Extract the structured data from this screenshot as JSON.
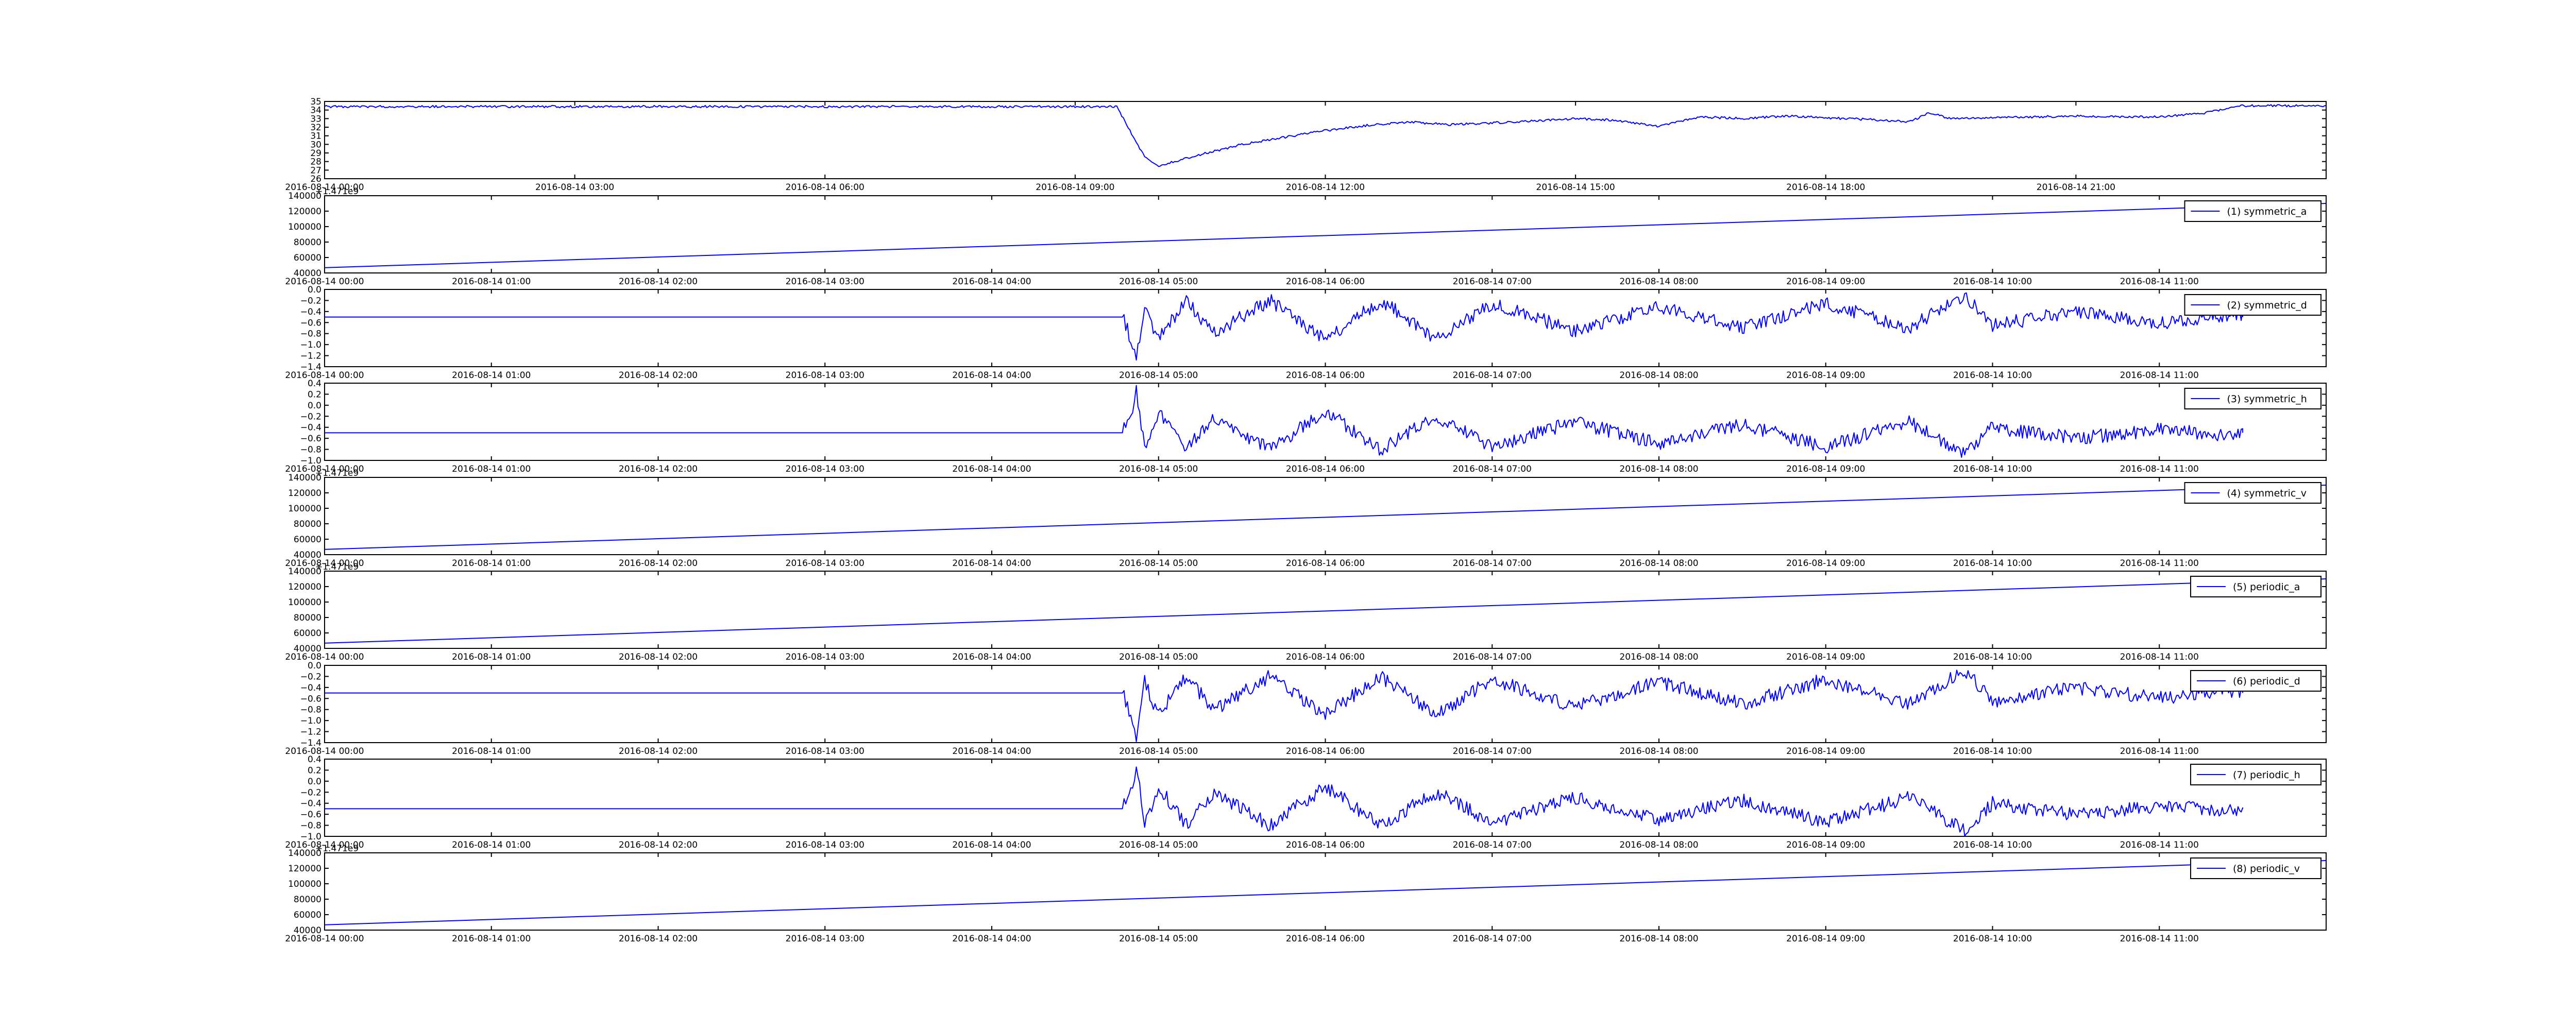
{
  "chart_data": [
    {
      "type": "line",
      "title": "",
      "xlabel": "",
      "ylabel": "",
      "x_start": "2016-08-14 00:00",
      "x_end": "2016-08-15 00:00",
      "xticks": [
        "2016-08-14 00:00",
        "2016-08-14 03:00",
        "2016-08-14 06:00",
        "2016-08-14 09:00",
        "2016-08-14 12:00",
        "2016-08-14 15:00",
        "2016-08-14 18:00",
        "2016-08-14 21:00"
      ],
      "yticks": [
        "26",
        "27",
        "28",
        "29",
        "30",
        "31",
        "32",
        "33",
        "34",
        "35"
      ],
      "ylim": [
        26,
        35
      ],
      "offset_text": "",
      "legend": "",
      "color": "#0000ff",
      "series": [
        {
          "points": [
            [
              "2016-08-14 00:00",
              34.4
            ],
            [
              "2016-08-14 09:30",
              34.4
            ],
            [
              "2016-08-14 09:50",
              28.5
            ],
            [
              "2016-08-14 10:00",
              27.5
            ],
            [
              "2016-08-14 10:30",
              28.8
            ],
            [
              "2016-08-14 11:00",
              30.0
            ],
            [
              "2016-08-14 11:30",
              30.8
            ],
            [
              "2016-08-14 12:00",
              31.6
            ],
            [
              "2016-08-14 12:30",
              32.2
            ],
            [
              "2016-08-14 13:00",
              32.6
            ],
            [
              "2016-08-14 13:30",
              32.3
            ],
            [
              "2016-08-14 14:00",
              32.5
            ],
            [
              "2016-08-14 15:00",
              33.0
            ],
            [
              "2016-08-14 15:30",
              32.8
            ],
            [
              "2016-08-14 16:00",
              32.1
            ],
            [
              "2016-08-14 16:30",
              33.2
            ],
            [
              "2016-08-14 17:00",
              33.0
            ],
            [
              "2016-08-14 17:30",
              33.3
            ],
            [
              "2016-08-14 18:00",
              33.1
            ],
            [
              "2016-08-14 18:30",
              32.9
            ],
            [
              "2016-08-14 19:00",
              32.6
            ],
            [
              "2016-08-14 19:15",
              33.7
            ],
            [
              "2016-08-14 19:30",
              33.0
            ],
            [
              "2016-08-14 20:00",
              33.1
            ],
            [
              "2016-08-14 21:00",
              33.3
            ],
            [
              "2016-08-14 22:00",
              33.2
            ],
            [
              "2016-08-14 22:30",
              33.6
            ],
            [
              "2016-08-14 23:00",
              34.5
            ],
            [
              "2016-08-15 00:00",
              34.5
            ]
          ]
        }
      ]
    },
    {
      "type": "line",
      "title": "",
      "xlabel": "",
      "ylabel": "",
      "x_start": "2016-08-14 00:00",
      "x_end": "2016-08-14 12:00",
      "xticks": [
        "2016-08-14 00:00",
        "2016-08-14 01:00",
        "2016-08-14 02:00",
        "2016-08-14 03:00",
        "2016-08-14 04:00",
        "2016-08-14 05:00",
        "2016-08-14 06:00",
        "2016-08-14 07:00",
        "2016-08-14 08:00",
        "2016-08-14 09:00",
        "2016-08-14 10:00",
        "2016-08-14 11:00"
      ],
      "yticks": [
        "40000",
        "60000",
        "80000",
        "100000",
        "120000",
        "140000"
      ],
      "ylim": [
        40000,
        140000
      ],
      "offset_text": "+1.471e9",
      "legend": "(1) symmetric_a",
      "color": "#0000ff",
      "series": [
        {
          "name": "(1) symmetric_a",
          "points": [
            [
              "2016-08-14 00:00",
              46800
            ],
            [
              "2016-08-14 12:00",
              130000
            ]
          ]
        }
      ]
    },
    {
      "type": "line",
      "title": "",
      "xlabel": "",
      "ylabel": "",
      "x_start": "2016-08-14 00:00",
      "x_end": "2016-08-14 12:00",
      "xticks": [
        "2016-08-14 00:00",
        "2016-08-14 01:00",
        "2016-08-14 02:00",
        "2016-08-14 03:00",
        "2016-08-14 04:00",
        "2016-08-14 05:00",
        "2016-08-14 06:00",
        "2016-08-14 07:00",
        "2016-08-14 08:00",
        "2016-08-14 09:00",
        "2016-08-14 10:00",
        "2016-08-14 11:00"
      ],
      "yticks": [
        "−1.4",
        "−1.2",
        "−1.0",
        "−0.8",
        "−0.6",
        "−0.4",
        "−0.2",
        "0.0"
      ],
      "ylim": [
        -1.4,
        0.0
      ],
      "offset_text": "",
      "legend": "(2) symmetric_d",
      "color": "#0000ff",
      "series": [
        {
          "name": "(2) symmetric_d",
          "points": [
            [
              "2016-08-14 00:00",
              -0.5
            ],
            [
              "2016-08-14 04:47",
              -0.5
            ],
            [
              "2016-08-14 04:50",
              -0.9
            ],
            [
              "2016-08-14 04:52",
              -1.3
            ],
            [
              "2016-08-14 04:55",
              -0.3
            ],
            [
              "2016-08-14 05:00",
              -0.9
            ],
            [
              "2016-08-14 05:10",
              -0.2
            ],
            [
              "2016-08-14 05:20",
              -0.8
            ],
            [
              "2016-08-14 05:40",
              -0.2
            ],
            [
              "2016-08-14 06:00",
              -0.9
            ],
            [
              "2016-08-14 06:20",
              -0.2
            ],
            [
              "2016-08-14 06:40",
              -0.9
            ],
            [
              "2016-08-14 07:00",
              -0.25
            ],
            [
              "2016-08-14 07:30",
              -0.75
            ],
            [
              "2016-08-14 08:00",
              -0.3
            ],
            [
              "2016-08-14 08:30",
              -0.7
            ],
            [
              "2016-08-14 09:00",
              -0.25
            ],
            [
              "2016-08-14 09:30",
              -0.7
            ],
            [
              "2016-08-14 09:50",
              -0.1
            ],
            [
              "2016-08-14 10:00",
              -0.65
            ],
            [
              "2016-08-14 10:30",
              -0.4
            ],
            [
              "2016-08-14 11:00",
              -0.6
            ],
            [
              "2016-08-14 11:30",
              -0.45
            ],
            [
              "2016-08-14 11:30",
              -0.5
            ]
          ]
        }
      ]
    },
    {
      "type": "line",
      "title": "",
      "xlabel": "",
      "ylabel": "",
      "x_start": "2016-08-14 00:00",
      "x_end": "2016-08-14 12:00",
      "xticks": [
        "2016-08-14 00:00",
        "2016-08-14 01:00",
        "2016-08-14 02:00",
        "2016-08-14 03:00",
        "2016-08-14 04:00",
        "2016-08-14 05:00",
        "2016-08-14 06:00",
        "2016-08-14 07:00",
        "2016-08-14 08:00",
        "2016-08-14 09:00",
        "2016-08-14 10:00",
        "2016-08-14 11:00"
      ],
      "yticks": [
        "−1.0",
        "−0.8",
        "−0.6",
        "−0.4",
        "−0.2",
        "0.0",
        "0.2",
        "0.4"
      ],
      "ylim": [
        -1.0,
        0.4
      ],
      "offset_text": "",
      "legend": "(3) symmetric_h",
      "color": "#0000ff",
      "series": [
        {
          "name": "(3) symmetric_h",
          "points": [
            [
              "2016-08-14 00:00",
              -0.5
            ],
            [
              "2016-08-14 04:47",
              -0.5
            ],
            [
              "2016-08-14 04:50",
              -0.2
            ],
            [
              "2016-08-14 04:52",
              0.3
            ],
            [
              "2016-08-14 04:55",
              -0.8
            ],
            [
              "2016-08-14 05:00",
              -0.1
            ],
            [
              "2016-08-14 05:10",
              -0.8
            ],
            [
              "2016-08-14 05:20",
              -0.2
            ],
            [
              "2016-08-14 05:40",
              -0.8
            ],
            [
              "2016-08-14 06:00",
              -0.1
            ],
            [
              "2016-08-14 06:20",
              -0.8
            ],
            [
              "2016-08-14 06:40",
              -0.2
            ],
            [
              "2016-08-14 07:00",
              -0.75
            ],
            [
              "2016-08-14 07:30",
              -0.3
            ],
            [
              "2016-08-14 08:00",
              -0.7
            ],
            [
              "2016-08-14 08:30",
              -0.35
            ],
            [
              "2016-08-14 09:00",
              -0.75
            ],
            [
              "2016-08-14 09:30",
              -0.3
            ],
            [
              "2016-08-14 09:50",
              -0.9
            ],
            [
              "2016-08-14 10:00",
              -0.4
            ],
            [
              "2016-08-14 10:30",
              -0.6
            ],
            [
              "2016-08-14 11:00",
              -0.45
            ],
            [
              "2016-08-14 11:30",
              -0.55
            ],
            [
              "2016-08-14 11:30",
              -0.5
            ]
          ]
        }
      ]
    },
    {
      "type": "line",
      "title": "",
      "xlabel": "",
      "ylabel": "",
      "x_start": "2016-08-14 00:00",
      "x_end": "2016-08-14 12:00",
      "xticks": [
        "2016-08-14 00:00",
        "2016-08-14 01:00",
        "2016-08-14 02:00",
        "2016-08-14 03:00",
        "2016-08-14 04:00",
        "2016-08-14 05:00",
        "2016-08-14 06:00",
        "2016-08-14 07:00",
        "2016-08-14 08:00",
        "2016-08-14 09:00",
        "2016-08-14 10:00",
        "2016-08-14 11:00"
      ],
      "yticks": [
        "40000",
        "60000",
        "80000",
        "100000",
        "120000",
        "140000"
      ],
      "ylim": [
        40000,
        140000
      ],
      "offset_text": "+1.471e9",
      "legend": "(4) symmetric_v",
      "color": "#0000ff",
      "series": [
        {
          "name": "(4) symmetric_v",
          "points": [
            [
              "2016-08-14 00:00",
              46800
            ],
            [
              "2016-08-14 12:00",
              130000
            ]
          ]
        }
      ]
    },
    {
      "type": "line",
      "title": "",
      "xlabel": "",
      "ylabel": "",
      "x_start": "2016-08-14 00:00",
      "x_end": "2016-08-14 12:00",
      "xticks": [
        "2016-08-14 00:00",
        "2016-08-14 01:00",
        "2016-08-14 02:00",
        "2016-08-14 03:00",
        "2016-08-14 04:00",
        "2016-08-14 05:00",
        "2016-08-14 06:00",
        "2016-08-14 07:00",
        "2016-08-14 08:00",
        "2016-08-14 09:00",
        "2016-08-14 10:00",
        "2016-08-14 11:00"
      ],
      "yticks": [
        "40000",
        "60000",
        "80000",
        "100000",
        "120000",
        "140000"
      ],
      "ylim": [
        40000,
        140000
      ],
      "offset_text": "+1.471e9",
      "legend": "(5) periodic_a",
      "color": "#0000ff",
      "series": [
        {
          "name": "(5) periodic_a",
          "points": [
            [
              "2016-08-14 00:00",
              46800
            ],
            [
              "2016-08-14 12:00",
              130000
            ]
          ]
        }
      ]
    },
    {
      "type": "line",
      "title": "",
      "xlabel": "",
      "ylabel": "",
      "x_start": "2016-08-14 00:00",
      "x_end": "2016-08-14 12:00",
      "xticks": [
        "2016-08-14 00:00",
        "2016-08-14 01:00",
        "2016-08-14 02:00",
        "2016-08-14 03:00",
        "2016-08-14 04:00",
        "2016-08-14 05:00",
        "2016-08-14 06:00",
        "2016-08-14 07:00",
        "2016-08-14 08:00",
        "2016-08-14 09:00",
        "2016-08-14 10:00",
        "2016-08-14 11:00"
      ],
      "yticks": [
        "−1.4",
        "−1.2",
        "−1.0",
        "−0.8",
        "−0.6",
        "−0.4",
        "−0.2",
        "0.0"
      ],
      "ylim": [
        -1.4,
        0.0
      ],
      "offset_text": "",
      "legend": "(6) periodic_d",
      "color": "#0000ff",
      "series": [
        {
          "name": "(6) periodic_d",
          "points": [
            [
              "2016-08-14 00:00",
              -0.5
            ],
            [
              "2016-08-14 04:47",
              -0.5
            ],
            [
              "2016-08-14 04:50",
              -0.9
            ],
            [
              "2016-08-14 04:52",
              -1.3
            ],
            [
              "2016-08-14 04:55",
              -0.3
            ],
            [
              "2016-08-14 05:00",
              -0.9
            ],
            [
              "2016-08-14 05:10",
              -0.2
            ],
            [
              "2016-08-14 05:20",
              -0.8
            ],
            [
              "2016-08-14 05:40",
              -0.2
            ],
            [
              "2016-08-14 06:00",
              -0.9
            ],
            [
              "2016-08-14 06:20",
              -0.2
            ],
            [
              "2016-08-14 06:40",
              -0.9
            ],
            [
              "2016-08-14 07:00",
              -0.25
            ],
            [
              "2016-08-14 07:30",
              -0.75
            ],
            [
              "2016-08-14 08:00",
              -0.3
            ],
            [
              "2016-08-14 08:30",
              -0.7
            ],
            [
              "2016-08-14 09:00",
              -0.25
            ],
            [
              "2016-08-14 09:30",
              -0.7
            ],
            [
              "2016-08-14 09:50",
              -0.1
            ],
            [
              "2016-08-14 10:00",
              -0.65
            ],
            [
              "2016-08-14 10:30",
              -0.4
            ],
            [
              "2016-08-14 11:00",
              -0.6
            ],
            [
              "2016-08-14 11:30",
              -0.45
            ],
            [
              "2016-08-14 11:30",
              -0.5
            ]
          ]
        }
      ]
    },
    {
      "type": "line",
      "title": "",
      "xlabel": "",
      "ylabel": "",
      "x_start": "2016-08-14 00:00",
      "x_end": "2016-08-14 12:00",
      "xticks": [
        "2016-08-14 00:00",
        "2016-08-14 01:00",
        "2016-08-14 02:00",
        "2016-08-14 03:00",
        "2016-08-14 04:00",
        "2016-08-14 05:00",
        "2016-08-14 06:00",
        "2016-08-14 07:00",
        "2016-08-14 08:00",
        "2016-08-14 09:00",
        "2016-08-14 10:00",
        "2016-08-14 11:00"
      ],
      "yticks": [
        "−1.0",
        "−0.8",
        "−0.6",
        "−0.4",
        "−0.2",
        "0.0",
        "0.2",
        "0.4"
      ],
      "ylim": [
        -1.0,
        0.4
      ],
      "offset_text": "",
      "legend": "(7) periodic_h",
      "color": "#0000ff",
      "series": [
        {
          "name": "(7) periodic_h",
          "points": [
            [
              "2016-08-14 00:00",
              -0.5
            ],
            [
              "2016-08-14 04:47",
              -0.5
            ],
            [
              "2016-08-14 04:50",
              -0.2
            ],
            [
              "2016-08-14 04:52",
              0.3
            ],
            [
              "2016-08-14 04:55",
              -0.8
            ],
            [
              "2016-08-14 05:00",
              -0.1
            ],
            [
              "2016-08-14 05:10",
              -0.8
            ],
            [
              "2016-08-14 05:20",
              -0.2
            ],
            [
              "2016-08-14 05:40",
              -0.8
            ],
            [
              "2016-08-14 06:00",
              -0.1
            ],
            [
              "2016-08-14 06:20",
              -0.8
            ],
            [
              "2016-08-14 06:40",
              -0.2
            ],
            [
              "2016-08-14 07:00",
              -0.75
            ],
            [
              "2016-08-14 07:30",
              -0.3
            ],
            [
              "2016-08-14 08:00",
              -0.7
            ],
            [
              "2016-08-14 08:30",
              -0.35
            ],
            [
              "2016-08-14 09:00",
              -0.75
            ],
            [
              "2016-08-14 09:30",
              -0.3
            ],
            [
              "2016-08-14 09:50",
              -0.9
            ],
            [
              "2016-08-14 10:00",
              -0.4
            ],
            [
              "2016-08-14 10:30",
              -0.6
            ],
            [
              "2016-08-14 11:00",
              -0.45
            ],
            [
              "2016-08-14 11:30",
              -0.55
            ],
            [
              "2016-08-14 11:30",
              -0.5
            ]
          ]
        }
      ]
    },
    {
      "type": "line",
      "title": "",
      "xlabel": "",
      "ylabel": "",
      "x_start": "2016-08-14 00:00",
      "x_end": "2016-08-14 12:00",
      "xticks": [
        "2016-08-14 00:00",
        "2016-08-14 01:00",
        "2016-08-14 02:00",
        "2016-08-14 03:00",
        "2016-08-14 04:00",
        "2016-08-14 05:00",
        "2016-08-14 06:00",
        "2016-08-14 07:00",
        "2016-08-14 08:00",
        "2016-08-14 09:00",
        "2016-08-14 10:00",
        "2016-08-14 11:00"
      ],
      "yticks": [
        "40000",
        "60000",
        "80000",
        "100000",
        "120000",
        "140000"
      ],
      "ylim": [
        40000,
        140000
      ],
      "offset_text": "+1.471e9",
      "legend": "(8) periodic_v",
      "color": "#0000ff",
      "series": [
        {
          "name": "(8) periodic_v",
          "points": [
            [
              "2016-08-14 00:00",
              46800
            ],
            [
              "2016-08-14 12:00",
              130000
            ]
          ]
        }
      ]
    }
  ]
}
